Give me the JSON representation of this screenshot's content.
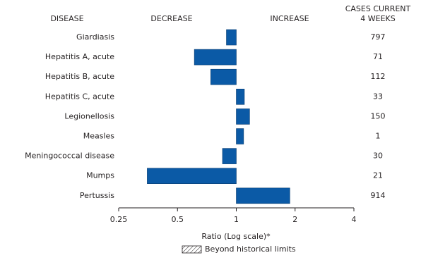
{
  "chart_data": {
    "type": "bar",
    "orientation": "horizontal",
    "log_scale": true,
    "column_headers": {
      "categories": "DISEASE",
      "decrease": "DECREASE",
      "increase": "INCREASE",
      "cases": [
        "CASES CURRENT",
        "4 WEEKS"
      ]
    },
    "categories": [
      "Giardiasis",
      "Hepatitis A, acute",
      "Hepatitis B, acute",
      "Hepatitis C, acute",
      "Legionellosis",
      "Measles",
      "Meningococcal disease",
      "Mumps",
      "Pertussis"
    ],
    "values": [
      0.89,
      0.61,
      0.74,
      1.1,
      1.17,
      1.09,
      0.85,
      0.35,
      1.88
    ],
    "cases": [
      797,
      71,
      112,
      33,
      150,
      1,
      30,
      21,
      914
    ],
    "color": "#0b5aa6",
    "xlim": [
      0.25,
      4
    ],
    "xticks": [
      0.25,
      0.5,
      1,
      2,
      4
    ],
    "xlabel": "Ratio (Log scale)*",
    "legend_label": "Beyond historical limits"
  }
}
